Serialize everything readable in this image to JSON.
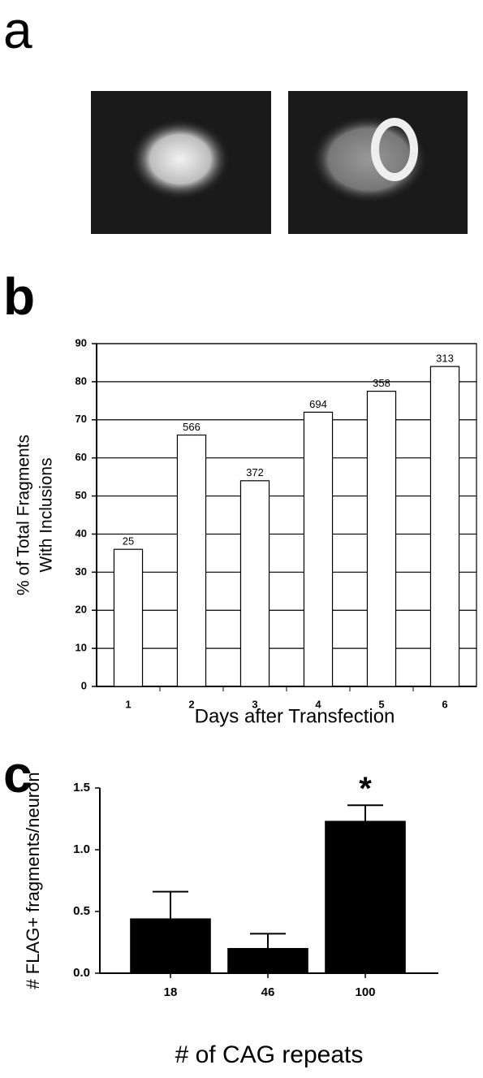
{
  "panel_a": {
    "label": "a"
  },
  "chart_data": [
    {
      "type": "bar",
      "panel": "b",
      "categories": [
        "1",
        "2",
        "3",
        "4",
        "5",
        "6"
      ],
      "values": [
        36,
        66,
        54,
        72,
        77.5,
        84
      ],
      "bar_annotations": [
        25,
        566,
        372,
        694,
        358,
        313
      ],
      "color": "#ffffff",
      "ylim": [
        0,
        90
      ],
      "yticks": [
        0,
        10,
        20,
        30,
        40,
        50,
        60,
        70,
        80,
        90
      ],
      "grid": true,
      "xlabel": "Days after Transfection",
      "ylabel": [
        "% of Total Fragments",
        "With Inclusions"
      ]
    },
    {
      "type": "bar",
      "panel": "c",
      "categories": [
        "18",
        "46",
        "100"
      ],
      "values": [
        0.44,
        0.2,
        1.23
      ],
      "errors": [
        0.22,
        0.12,
        0.13
      ],
      "significance_marks": [
        null,
        null,
        "*"
      ],
      "color": "#000000",
      "ylim": [
        0,
        1.5
      ],
      "yticks": [
        {
          "value": 0,
          "label": "0.0"
        },
        0.5,
        {
          "value": 1,
          "label": "1.0"
        },
        1.5
      ],
      "grid": false,
      "xlabel": "# of CAG repeats",
      "ylabel": [
        "# FLAG+ fragments/neuron"
      ]
    }
  ]
}
